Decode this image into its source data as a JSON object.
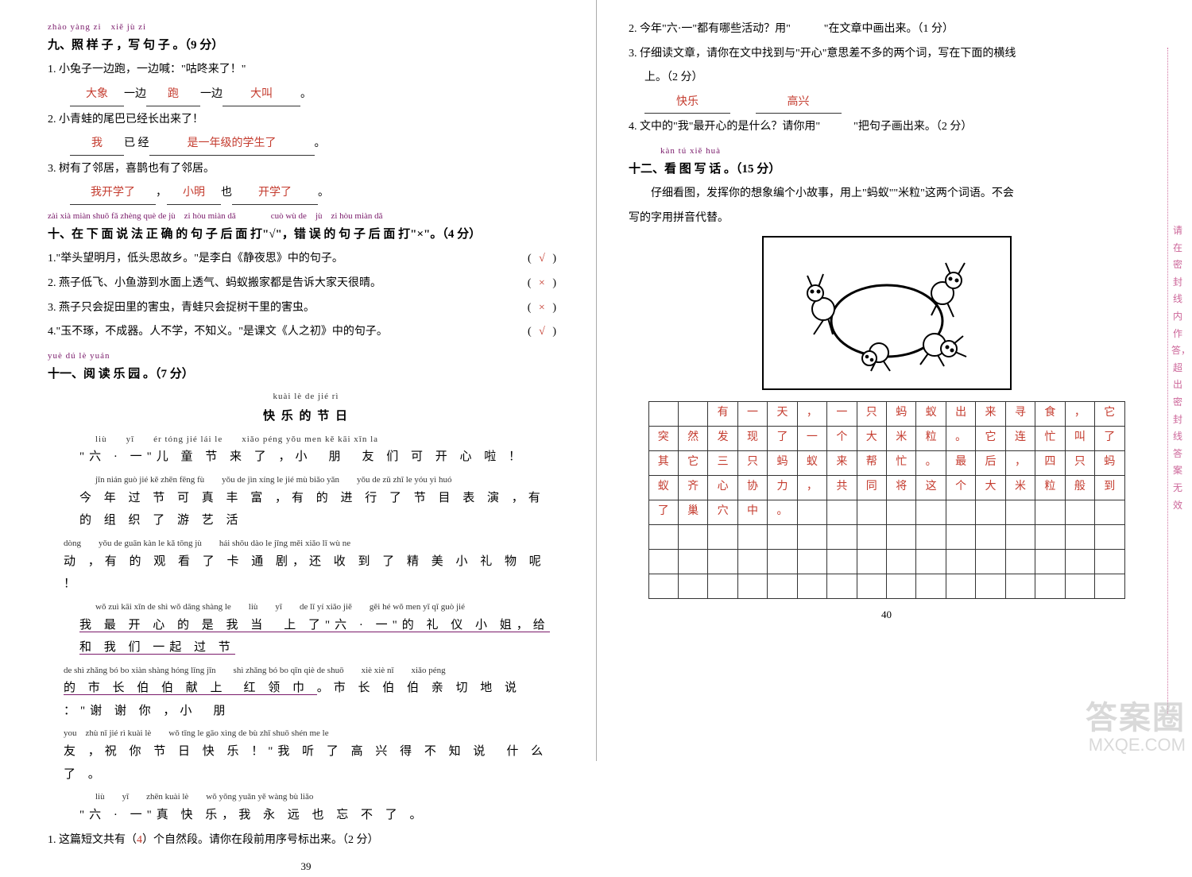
{
  "left": {
    "s9_pinyin": "zhào yàng zi　xiě jù zi",
    "s9_title": "九、照 样 子 ，写 句 子 。（9 分）",
    "q1": "1. 小兔子一边跑，一边喊：\"咕咚来了！\"",
    "q1_b1": "大象",
    "q1_b2": "跑",
    "q1_b3": "大叫",
    "q2": "2. 小青蛙的尾巴已经长出来了！",
    "q2_b1": "我",
    "q2_b2": "是一年级的学生了",
    "q3": "3. 树有了邻居，喜鹊也有了邻居。",
    "q3_b1": "我开学了",
    "q3_b2": "小明",
    "q3_b3": "开学了",
    "s10_pinyin": "zài xià miàn shuō fǎ zhèng què de jù　zi hòu miàn dǎ　　　　cuò wù de　jù　zi hòu miàn dǎ",
    "s10_title": "十、在 下 面 说 法 正 确 的 句 子 后 面 打\"√\"，错 误 的 句 子 后 面 打\"×\"。（4 分）",
    "tf1": "1.\"举头望明月，低头思故乡。\"是李白《静夜思》中的句子。",
    "tf1_m": "√",
    "tf2": "2. 燕子低飞、小鱼游到水面上透气、蚂蚁搬家都是告诉大家天很晴。",
    "tf2_m": "×",
    "tf3": "3. 燕子只会捉田里的害虫，青蛙只会捉树干里的害虫。",
    "tf3_m": "×",
    "tf4": "4.\"玉不琢，不成器。人不学，不知义。\"是课文《人之初》中的句子。",
    "tf4_m": "√",
    "s11_pinyin": "yuè dú lè yuán",
    "s11_title": "十一、阅 读 乐 园 。（7 分）",
    "rt_py": "kuài lè de jié rì",
    "rt": "快 乐 的 节 日",
    "r1_py": "liù　　yī　　ér tóng jié lái le　　xiǎo péng yǒu men kě kāi xīn la",
    "r1": "\"六 · 一\"儿 童 节 来 了 ，小　朋　友 们 可 开 心 啦 ！",
    "r2_py": "jīn nián guò jié kě zhēn fēng fù　　yǒu de jìn xíng le jié mù biǎo yǎn　　yǒu de zǔ zhī le yóu yì huó",
    "r2": "今 年 过 节 可 真 丰 富 ，有 的 进 行 了 节 目 表 演 ，有 的 组 织 了 游 艺 活",
    "r3_py": "dòng　　yǒu de guān kàn le kǎ tōng jù　　hái shōu dào le jīng měi xiǎo lǐ wù ne",
    "r3": "动 ，有 的 观 看 了 卡 通 剧，还 收 到 了 精 美 小 礼 物 呢 ！",
    "r4_py": "wǒ zuì kāi xīn de shì wǒ dāng shàng le　　liù　　yī　　de lǐ yí xiǎo jiě　　gěi hé wǒ men yī qǐ guò jié",
    "r4a": "我 最 开 心 的 是 我 当　上 了\"六 · 一\"的 礼 仪 小 姐，给 和 我 们 一起 过 节",
    "r5_py": "de shì zhǎng bó bo xiàn shàng hóng lǐng jīn　　shì zhǎng bó bo qīn qiè de shuō　　xiè xiè nǐ　　xiǎo péng",
    "r5a": "的 市 长 伯 伯 献 上　红 领 巾 。市 长 伯 伯 亲 切 地 说 ：\"谢 谢 你 ，小　朋",
    "r6_py": "you　zhù nǐ jié rì kuài lè　　wǒ tīng le gāo xìng de bù zhī shuō shén me le",
    "r6": "友 ，祝 你 节 日 快 乐 ！\"我 听 了 高 兴 得 不 知 说　什 么 了 。",
    "r7_py": "liù　　yī　　zhēn kuài lè　　wǒ yǒng yuǎn yě wàng bù liǎo",
    "r7": "\"六 · 一\"真 快 乐，我 永 远 也 忘 不 了 。",
    "rq1a": "1. 这篇短文共有（",
    "rq1b": "4",
    "rq1c": "）个自然段。请你在段前用序号标出来。（2 分）",
    "left_page": "39"
  },
  "right": {
    "rq2": "2. 今年\"六·一\"都有哪些活动？用\"　　　\"在文章中画出来。（1 分）",
    "rq3a": "3. 仔细读文章，请你在文中找到与\"开心\"意思差不多的两个词，写在下面的横线",
    "rq3b": "上。（2 分）",
    "rq3_b1": "快乐",
    "rq3_b2": "高兴",
    "rq4": "4. 文中的\"我\"最开心的是什么？请你用\"　　　\"把句子画出来。（2 分）",
    "s12_pinyin": "kàn tú xiě huà",
    "s12_title": "十二、看 图 写 话 。（15 分）",
    "s12_intro1": "仔细看图，发挥你的想象编个小故事，用上\"蚂蚁\"\"米粒\"这两个词语。不会",
    "s12_intro2": "写的字用拼音代替。",
    "grid": [
      [
        "",
        "",
        "有",
        "一",
        "天",
        "，",
        "一",
        "只",
        "蚂",
        "蚁",
        "出",
        "来",
        "寻",
        "食",
        "，",
        "它"
      ],
      [
        "突",
        "然",
        "发",
        "现",
        "了",
        "一",
        "个",
        "大",
        "米",
        "粒",
        "。",
        "它",
        "连",
        "忙",
        "叫",
        "了"
      ],
      [
        "其",
        "它",
        "三",
        "只",
        "蚂",
        "蚁",
        "来",
        "帮",
        "忙",
        "。",
        "最",
        "后",
        "，",
        "四",
        "只",
        "蚂"
      ],
      [
        "蚁",
        "齐",
        "心",
        "协",
        "力",
        "，",
        "共",
        "同",
        "将",
        "这",
        "个",
        "大",
        "米",
        "粒",
        "般",
        "到"
      ],
      [
        "了",
        "巢",
        "穴",
        "中",
        "。",
        "",
        "",
        "",
        "",
        "",
        "",
        "",
        "",
        "",
        "",
        ""
      ],
      [
        "",
        "",
        "",
        "",
        "",
        "",
        "",
        "",
        "",
        "",
        "",
        "",
        "",
        "",
        "",
        ""
      ],
      [
        "",
        "",
        "",
        "",
        "",
        "",
        "",
        "",
        "",
        "",
        "",
        "",
        "",
        "",
        "",
        ""
      ],
      [
        "",
        "",
        "",
        "",
        "",
        "",
        "",
        "",
        "",
        "",
        "",
        "",
        "",
        "",
        "",
        ""
      ]
    ],
    "side": "请在密封线内作答，超出密封线答案无效",
    "right_page": "40",
    "wm1": "答案圈",
    "wm2": "MXQE.COM"
  }
}
